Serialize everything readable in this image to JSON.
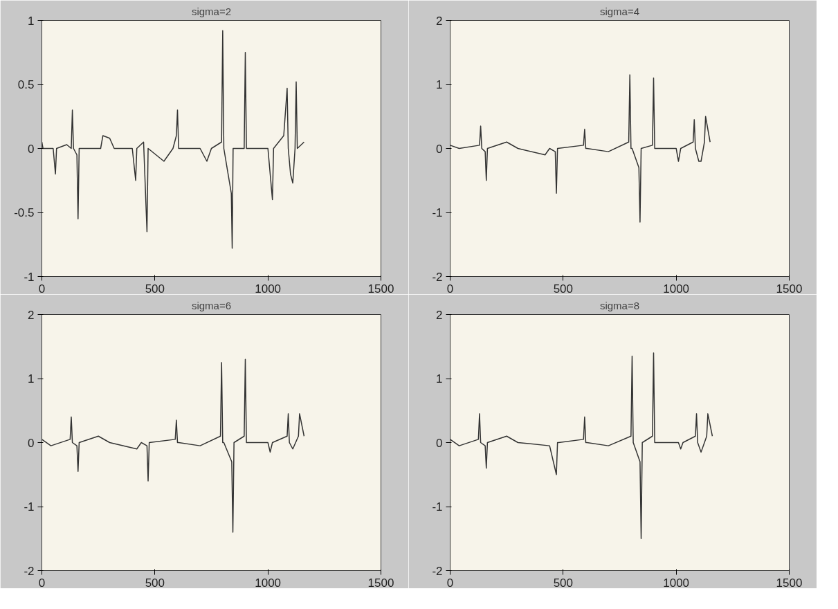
{
  "chart_data": [
    {
      "type": "line",
      "title": "sigma=2",
      "xlim": [
        0,
        1500
      ],
      "xticks": [
        0,
        500,
        1000,
        1500
      ],
      "ylim": [
        -1,
        1
      ],
      "yticks": [
        -1,
        -0.5,
        0,
        0.5,
        1
      ],
      "grid": false,
      "series": [
        {
          "color": "#333333",
          "x": [
            0,
            5,
            50,
            60,
            65,
            110,
            130,
            135,
            140,
            155,
            160,
            165,
            200,
            260,
            270,
            300,
            320,
            400,
            415,
            420,
            450,
            465,
            470,
            540,
            580,
            595,
            600,
            605,
            700,
            730,
            750,
            795,
            800,
            805,
            838,
            842,
            846,
            895,
            900,
            905,
            1000,
            1020,
            1025,
            1070,
            1085,
            1090,
            1100,
            1110,
            1120,
            1125,
            1130,
            1160
          ],
          "values": [
            0.05,
            0,
            0,
            -0.2,
            0,
            0.03,
            0,
            0.3,
            0,
            -0.05,
            -0.55,
            0,
            0,
            0,
            0.1,
            0.08,
            0,
            0,
            -0.25,
            0,
            0.05,
            -0.65,
            0,
            -0.1,
            0,
            0.1,
            0.3,
            0,
            0,
            -0.1,
            0,
            0.05,
            0.92,
            0,
            -0.35,
            -0.78,
            0,
            0,
            0.75,
            0,
            0,
            -0.4,
            0,
            0.1,
            0.47,
            0,
            -0.2,
            -0.27,
            0,
            0.52,
            0,
            0.05
          ]
        }
      ]
    },
    {
      "type": "line",
      "title": "sigma=4",
      "xlim": [
        0,
        1500
      ],
      "xticks": [
        0,
        500,
        1000,
        1500
      ],
      "ylim": [
        -2,
        2
      ],
      "yticks": [
        -2,
        -1,
        0,
        1,
        2
      ],
      "grid": false,
      "series": [
        {
          "color": "#333333",
          "x": [
            0,
            40,
            130,
            135,
            140,
            155,
            160,
            165,
            250,
            300,
            420,
            440,
            465,
            470,
            475,
            590,
            595,
            600,
            605,
            700,
            790,
            795,
            800,
            805,
            835,
            840,
            845,
            895,
            900,
            905,
            1000,
            1010,
            1020,
            1075,
            1080,
            1085,
            1100,
            1110,
            1125,
            1130,
            1150
          ],
          "values": [
            0.05,
            0,
            0.05,
            0.35,
            0,
            -0.05,
            -0.5,
            0,
            0.1,
            0,
            -0.1,
            0,
            -0.05,
            -0.7,
            0,
            0.05,
            0.3,
            0,
            0,
            -0.05,
            0.1,
            1.15,
            0,
            0,
            -0.3,
            -1.15,
            0,
            0.05,
            1.1,
            0,
            0,
            -0.2,
            0,
            0.1,
            0.45,
            0,
            -0.2,
            -0.2,
            0.1,
            0.5,
            0.1
          ]
        }
      ]
    },
    {
      "type": "line",
      "title": "sigma=6",
      "xlim": [
        0,
        1500
      ],
      "xticks": [
        0,
        500,
        1000,
        1500
      ],
      "ylim": [
        -2,
        2
      ],
      "yticks": [
        -2,
        -1,
        0,
        1,
        2
      ],
      "grid": false,
      "series": [
        {
          "color": "#333333",
          "x": [
            0,
            40,
            125,
            130,
            135,
            155,
            160,
            165,
            250,
            300,
            420,
            440,
            465,
            470,
            475,
            590,
            595,
            600,
            605,
            700,
            790,
            795,
            800,
            805,
            840,
            845,
            850,
            895,
            900,
            905,
            1000,
            1010,
            1020,
            1085,
            1090,
            1095,
            1110,
            1135,
            1140,
            1160
          ],
          "values": [
            0.05,
            -0.05,
            0.05,
            0.4,
            0,
            -0.05,
            -0.45,
            0,
            0.1,
            0,
            -0.1,
            0,
            -0.05,
            -0.6,
            0,
            0.05,
            0.35,
            0,
            0,
            -0.05,
            0.1,
            1.25,
            0,
            0,
            -0.3,
            -1.4,
            0,
            0.1,
            1.3,
            0,
            0,
            -0.15,
            0,
            0.1,
            0.45,
            0,
            -0.1,
            0.1,
            0.45,
            0.1
          ]
        }
      ]
    },
    {
      "type": "line",
      "title": "sigma=8",
      "xlim": [
        0,
        1500
      ],
      "xticks": [
        0,
        500,
        1000,
        1500
      ],
      "ylim": [
        -2,
        2
      ],
      "yticks": [
        -2,
        -1,
        0,
        1,
        2
      ],
      "grid": false,
      "series": [
        {
          "color": "#333333",
          "x": [
            0,
            40,
            125,
            130,
            135,
            155,
            160,
            165,
            250,
            300,
            440,
            470,
            475,
            480,
            590,
            595,
            600,
            605,
            700,
            800,
            805,
            810,
            840,
            845,
            850,
            895,
            900,
            905,
            1010,
            1020,
            1030,
            1085,
            1090,
            1095,
            1110,
            1135,
            1140,
            1160
          ],
          "values": [
            0.05,
            -0.05,
            0.05,
            0.45,
            0,
            -0.05,
            -0.4,
            0,
            0.1,
            0,
            -0.05,
            -0.5,
            0,
            0,
            0.05,
            0.4,
            0,
            0,
            -0.05,
            0.1,
            1.35,
            0,
            -0.3,
            -1.5,
            0,
            0.1,
            1.4,
            0,
            0,
            -0.1,
            0,
            0.1,
            0.45,
            0,
            -0.15,
            0.1,
            0.45,
            0.1
          ]
        }
      ]
    }
  ]
}
